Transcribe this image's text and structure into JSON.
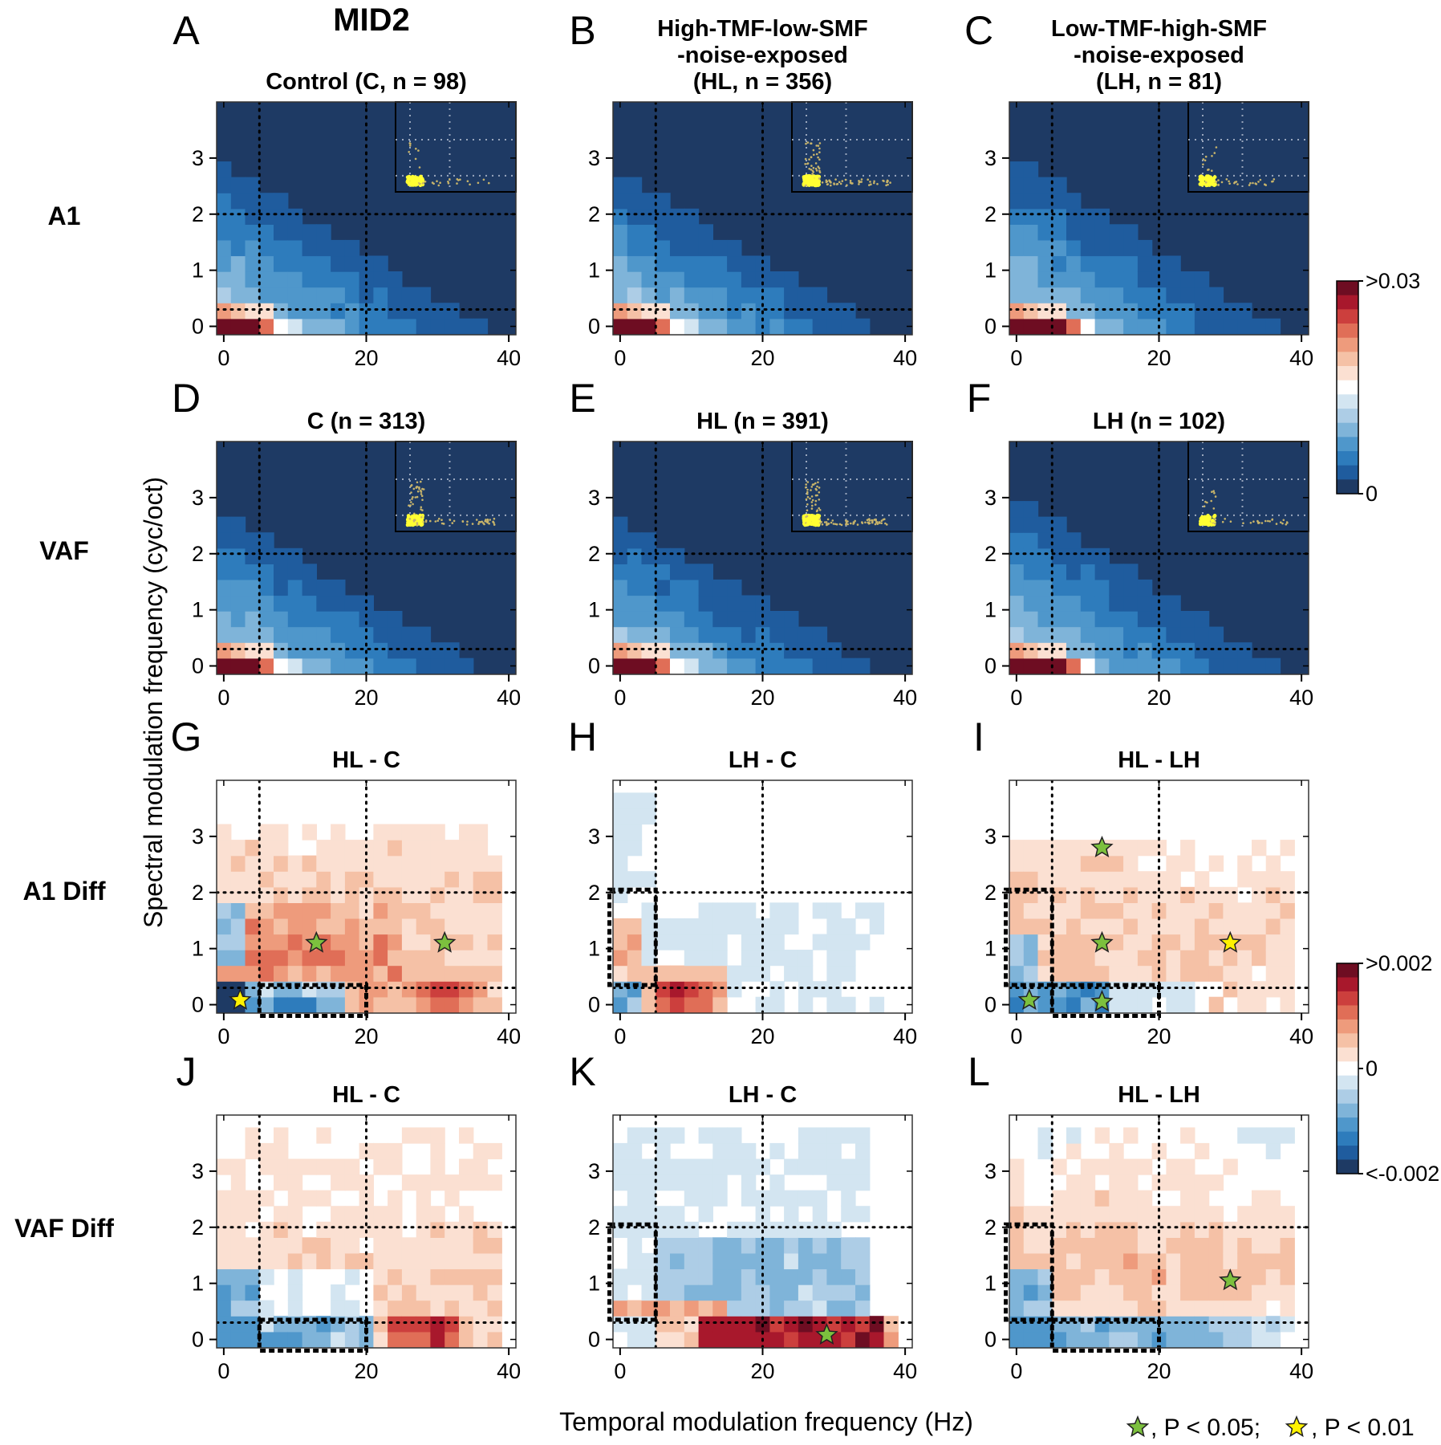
{
  "chart_data": {
    "type": "heatmap",
    "figure_title": "MID2",
    "xlabel": "Temporal modulation frequency  (Hz)",
    "ylabel": "Spectral modulation frequency  (cyc/oct)",
    "x_ticks": [
      "0",
      "20",
      "40"
    ],
    "y_ticks": [
      "0",
      "1",
      "2",
      "3"
    ],
    "xlim": [
      -1,
      41
    ],
    "ylim": [
      -0.15,
      4.0
    ],
    "grid_columns": 20,
    "grid_rows": 14,
    "row_labels": [
      "A1",
      "VAF",
      "A1 Diff",
      "VAF Diff"
    ],
    "colorbars": [
      {
        "name": "power",
        "max_label": ">0.03",
        "min_label": "0",
        "palette": "blue-white-red",
        "range": [
          0,
          0.03
        ]
      },
      {
        "name": "difference",
        "max_label": ">0.002",
        "mid_label": "0",
        "min_label": "<-0.002",
        "palette": "blue-white-red",
        "range": [
          -0.002,
          0.002
        ]
      }
    ],
    "legend": {
      "green_star": ", P < 0.05;",
      "yellow_star": ", P < 0.01",
      "placement": "bottom-right"
    },
    "panels": [
      {
        "letter": "A",
        "title": "Control (C, n = 98)",
        "kind": "power",
        "inset": "sparse",
        "steepness": 0.95,
        "hot_cols": 3
      },
      {
        "letter": "B",
        "title": "High-TMF-low-SMF\n-noise-exposed\n(HL, n = 356)",
        "kind": "power",
        "inset": "dense",
        "steepness": 1.0,
        "hot_cols": 3
      },
      {
        "letter": "C",
        "title": "Low-TMF-high-SMF\n-noise-exposed\n(LH, n = 81)",
        "kind": "power",
        "inset": "sparse",
        "steepness": 0.9,
        "hot_cols": 4
      },
      {
        "letter": "D",
        "title": "C (n = 313)",
        "kind": "power",
        "inset": "medium",
        "steepness": 1.0,
        "hot_cols": 3
      },
      {
        "letter": "E",
        "title": "HL (n = 391)",
        "kind": "power",
        "inset": "dense",
        "steepness": 1.05,
        "hot_cols": 3
      },
      {
        "letter": "F",
        "title": "LH (n = 102)",
        "kind": "power",
        "inset": "sparse",
        "steepness": 0.9,
        "hot_cols": 4
      },
      {
        "letter": "G",
        "title": "HL - C",
        "kind": "diff",
        "pattern": "a1_hl_c",
        "boxes": [
          {
            "x": [
              5,
              20
            ],
            "y": [
              -0.2,
              0.35
            ]
          }
        ],
        "stars": [
          {
            "x": 13,
            "y": 1.1,
            "p": 0.05
          },
          {
            "x": 31,
            "y": 1.1,
            "p": 0.05
          },
          {
            "x": 2.3,
            "y": 0.08,
            "p": 0.01
          }
        ]
      },
      {
        "letter": "H",
        "title": "LH - C",
        "kind": "diff",
        "pattern": "a1_lh_c",
        "boxes": [
          {
            "x": [
              -1.5,
              5
            ],
            "y": [
              0.35,
              2.05
            ]
          }
        ],
        "stars": []
      },
      {
        "letter": "I",
        "title": "HL - LH",
        "kind": "diff",
        "pattern": "a1_hl_lh",
        "boxes": [
          {
            "x": [
              -1.5,
              5
            ],
            "y": [
              0.35,
              2.05
            ]
          },
          {
            "x": [
              5,
              20
            ],
            "y": [
              -0.2,
              0.35
            ]
          }
        ],
        "stars": [
          {
            "x": 12,
            "y": 2.8,
            "p": 0.05
          },
          {
            "x": 12,
            "y": 1.1,
            "p": 0.05
          },
          {
            "x": 30,
            "y": 1.1,
            "p": 0.01
          },
          {
            "x": 1.8,
            "y": 0.08,
            "p": 0.05
          },
          {
            "x": 12,
            "y": 0.05,
            "p": 0.05
          }
        ]
      },
      {
        "letter": "J",
        "title": "HL - C",
        "kind": "diff",
        "pattern": "vaf_hl_c",
        "boxes": [
          {
            "x": [
              5,
              20
            ],
            "y": [
              -0.2,
              0.35
            ]
          }
        ],
        "stars": []
      },
      {
        "letter": "K",
        "title": "LH - C",
        "kind": "diff",
        "pattern": "vaf_lh_c",
        "boxes": [
          {
            "x": [
              -1.5,
              5
            ],
            "y": [
              0.35,
              2.05
            ]
          }
        ],
        "stars": [
          {
            "x": 29,
            "y": 0.08,
            "p": 0.05
          }
        ]
      },
      {
        "letter": "L",
        "title": "HL - LH",
        "kind": "diff",
        "pattern": "vaf_hl_lh",
        "boxes": [
          {
            "x": [
              -1.5,
              5
            ],
            "y": [
              0.35,
              2.05
            ]
          },
          {
            "x": [
              5,
              20
            ],
            "y": [
              -0.2,
              0.35
            ]
          }
        ],
        "stars": [
          {
            "x": 30,
            "y": 1.05,
            "p": 0.05
          }
        ]
      }
    ],
    "reference_lines": {
      "x": [
        5,
        20
      ],
      "y": [
        0.3,
        2.0
      ]
    }
  },
  "colors": {
    "ramp": [
      "#1e3a64",
      "#1f5c9e",
      "#2e7cbc",
      "#4f97cb",
      "#7fb4d9",
      "#adcde6",
      "#d3e5f1",
      "#ffffff",
      "#fbe0d2",
      "#f5c1a6",
      "#ee9b7c",
      "#e06e57",
      "#cc3f3d",
      "#a8182c",
      "#6e0d22"
    ],
    "star_p05": "#7cc03e",
    "star_p01": "#fff200",
    "inset_dot": "#ffff33",
    "dotted_line": "#000000"
  }
}
